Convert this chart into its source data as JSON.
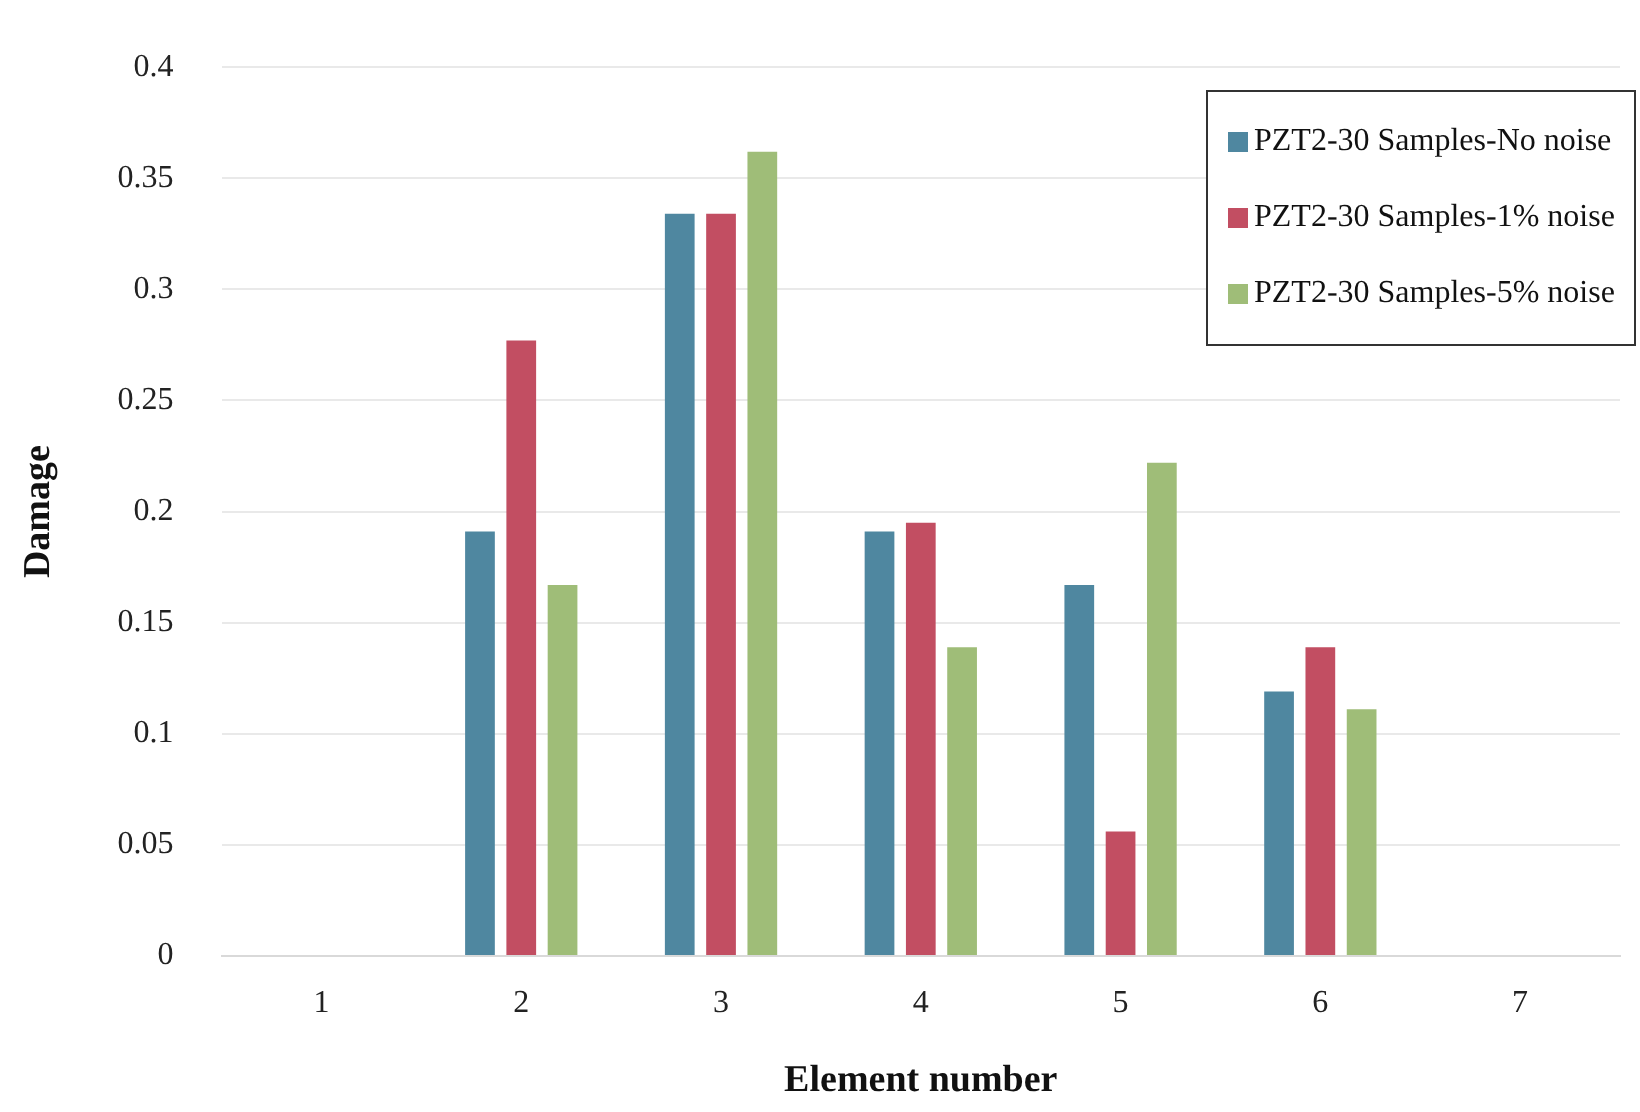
{
  "chart_data": {
    "type": "bar",
    "xlabel": "Element number",
    "ylabel": "Damage",
    "categories": [
      "1",
      "2",
      "3",
      "4",
      "5",
      "6",
      "7"
    ],
    "series": [
      {
        "name": "PZT2-30 Samples-No noise",
        "color": "#4f87a0",
        "values": [
          null,
          0.191,
          0.334,
          0.191,
          0.167,
          0.119,
          null
        ]
      },
      {
        "name": "PZT2-30 Samples-1% noise",
        "color": "#c24e62",
        "values": [
          null,
          0.277,
          0.334,
          0.195,
          0.056,
          0.139,
          null
        ]
      },
      {
        "name": "PZT2-30 Samples-5% noise",
        "color": "#9fbd78",
        "values": [
          null,
          0.167,
          0.362,
          0.139,
          0.222,
          0.111,
          null
        ]
      }
    ],
    "ylim": [
      0,
      0.4
    ],
    "yticks": [
      0,
      0.05,
      0.1,
      0.15,
      0.2,
      0.25,
      0.3,
      0.35,
      0.4
    ],
    "grid": "y",
    "legend": "top right"
  }
}
